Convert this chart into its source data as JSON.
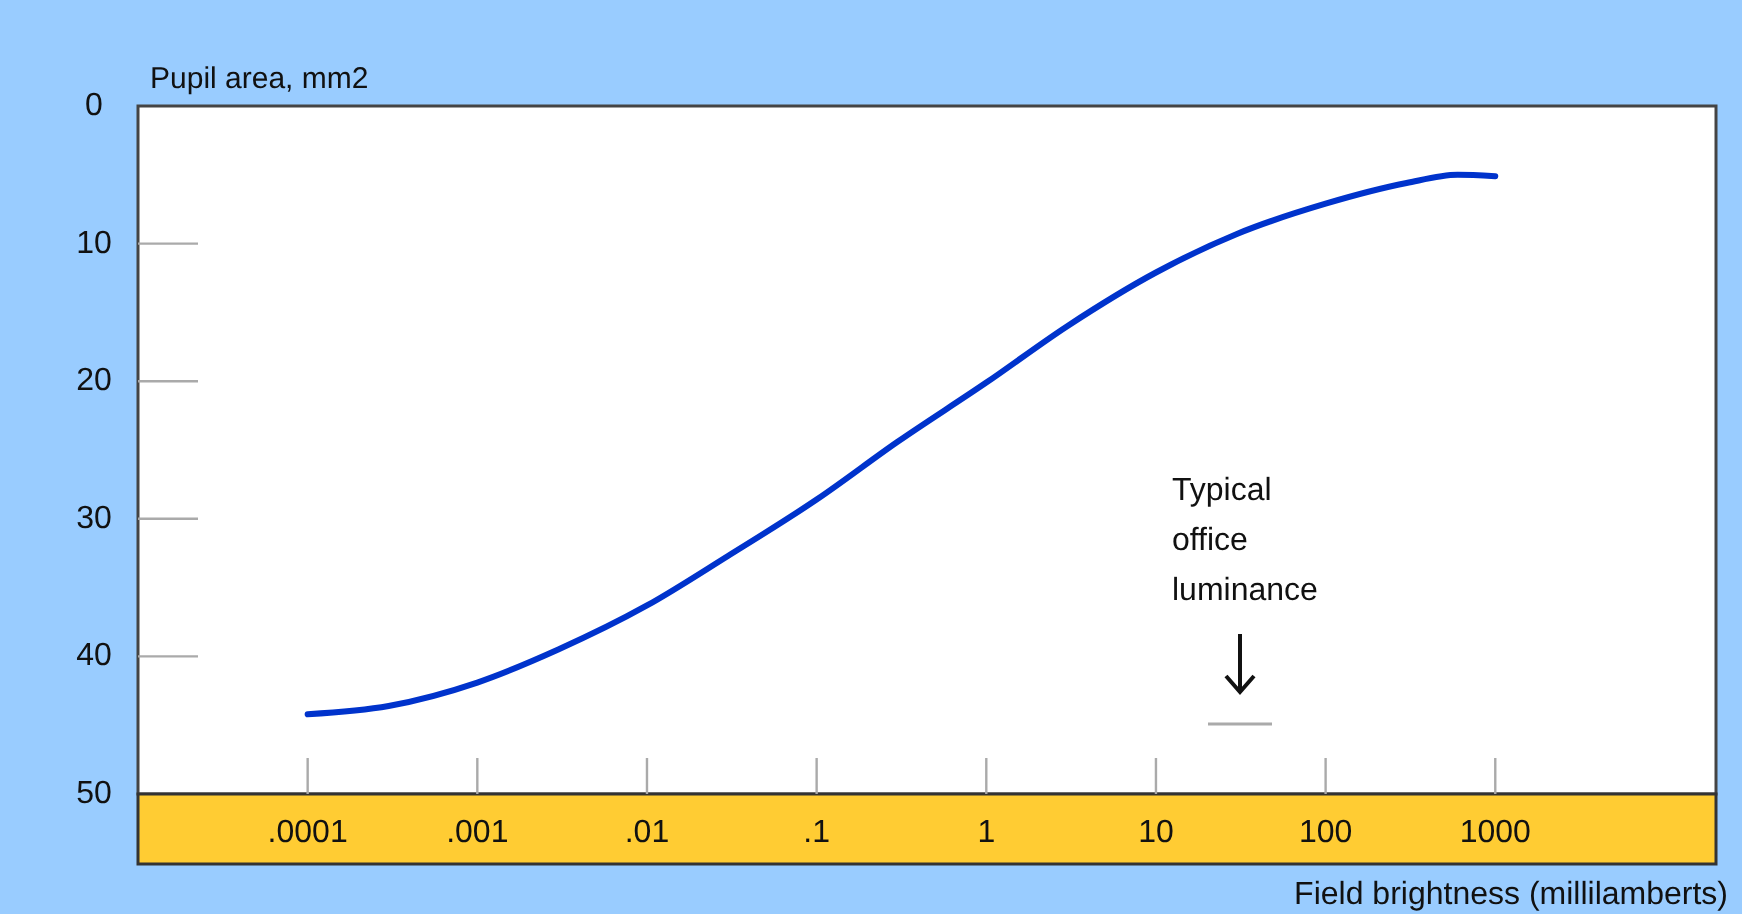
{
  "chart_data": {
    "type": "line",
    "ylabel": "Pupil area, mm2",
    "xlabel": "Field brightness (millilamberts)",
    "log": "x",
    "xlim": [
      1e-05,
      20000
    ],
    "xticks": [
      {
        "value": 0.0001,
        "label": ".0001"
      },
      {
        "value": 0.001,
        "label": ".001"
      },
      {
        "value": 0.01,
        "label": ".01"
      },
      {
        "value": 0.1,
        "label": ".1"
      },
      1,
      10,
      100,
      1000
    ],
    "ylim": [
      50,
      0
    ],
    "yticks": [
      0,
      10,
      20,
      30,
      40,
      50
    ],
    "grid": false,
    "marker": "none",
    "line_style": "solid",
    "series": [
      {
        "color": "#0033cc",
        "x": [
          0.0001,
          0.0003,
          0.001,
          0.003,
          0.01,
          0.03,
          0.1,
          0.3,
          1,
          3,
          10,
          30,
          100,
          300,
          600,
          1000
        ],
        "values": [
          44.2,
          43.6,
          41.9,
          39.5,
          36.3,
          32.7,
          28.6,
          24.4,
          20.1,
          16.0,
          12.1,
          9.3,
          7.1,
          5.6,
          5.0,
          5.1
        ]
      }
    ],
    "annotations": [
      "Typical\noffice\nluminance"
    ]
  }
}
